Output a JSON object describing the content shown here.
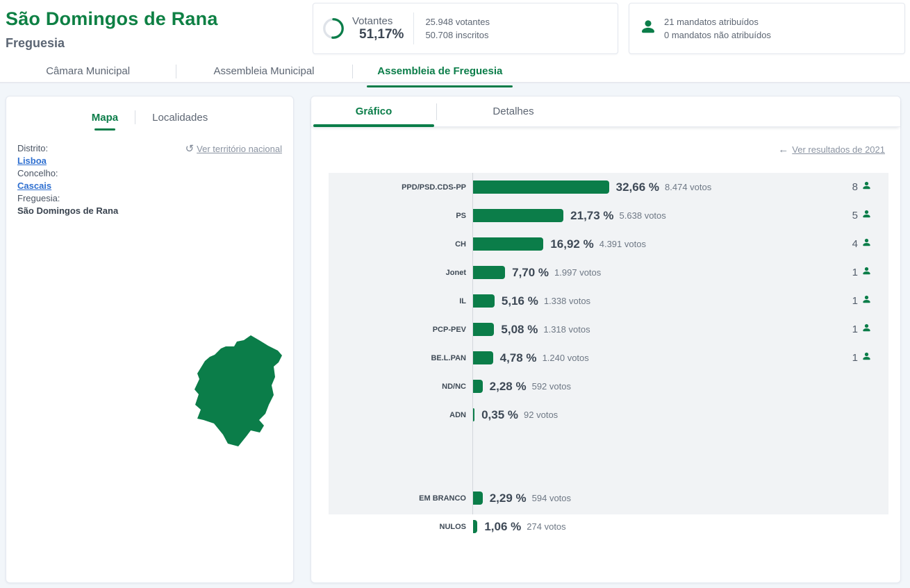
{
  "page": {
    "title": "São Domingos de Rana",
    "subtitle": "Freguesia"
  },
  "turnout": {
    "label": "Votantes",
    "percent": "51,17%",
    "percent_value": 51.17,
    "voters": "25.948 votantes",
    "registered": "50.708 inscritos"
  },
  "mandates": {
    "assigned": "21 mandatos atribuídos",
    "unassigned": "0 mandatos não atribuídos"
  },
  "main_tabs": [
    {
      "label": "Câmara Municipal",
      "active": false
    },
    {
      "label": "Assembleia Municipal",
      "active": false
    },
    {
      "label": "Assembleia de Freguesia",
      "active": true
    }
  ],
  "left_panel": {
    "tabs": [
      {
        "label": "Mapa",
        "active": true
      },
      {
        "label": "Localidades",
        "active": false
      }
    ],
    "reset_link": "Ver território nacional",
    "fields": [
      {
        "label": "Distrito:",
        "value": "Lisboa",
        "is_link": true
      },
      {
        "label": "Concelho:",
        "value": "Cascais",
        "is_link": true
      },
      {
        "label": "Freguesia:",
        "value": "São Domingos de Rana",
        "is_link": false
      }
    ]
  },
  "right_panel": {
    "tabs": [
      {
        "label": "Gráfico",
        "active": true
      },
      {
        "label": "Detalhes",
        "active": false
      }
    ],
    "back_link": "Ver resultados de 2021"
  },
  "chart_data": {
    "type": "bar",
    "orientation": "horizontal",
    "xlim": [
      0,
      100
    ],
    "value_unit": "percent of votes",
    "parties": [
      {
        "label": "PPD/PSD.CDS-PP",
        "percent": 32.66,
        "percent_label": "32,66 %",
        "votes": "8.474 votos",
        "mandates": 8
      },
      {
        "label": "PS",
        "percent": 21.73,
        "percent_label": "21,73 %",
        "votes": "5.638 votos",
        "mandates": 5
      },
      {
        "label": "CH",
        "percent": 16.92,
        "percent_label": "16,92 %",
        "votes": "4.391 votos",
        "mandates": 4
      },
      {
        "label": "Jonet",
        "percent": 7.7,
        "percent_label": "7,70 %",
        "votes": "1.997 votos",
        "mandates": 1
      },
      {
        "label": "IL",
        "percent": 5.16,
        "percent_label": "5,16 %",
        "votes": "1.338 votos",
        "mandates": 1
      },
      {
        "label": "PCP-PEV",
        "percent": 5.08,
        "percent_label": "5,08 %",
        "votes": "1.318 votos",
        "mandates": 1
      },
      {
        "label": "BE.L.PAN",
        "percent": 4.78,
        "percent_label": "4,78 %",
        "votes": "1.240 votos",
        "mandates": 1
      },
      {
        "label": "ND/NC",
        "percent": 2.28,
        "percent_label": "2,28 %",
        "votes": "592 votos",
        "mandates": null
      },
      {
        "label": "ADN",
        "percent": 0.35,
        "percent_label": "0,35 %",
        "votes": "92 votos",
        "mandates": null
      }
    ],
    "other": [
      {
        "label": "EM BRANCO",
        "percent": 2.29,
        "percent_label": "2,29 %",
        "votes": "594 votos",
        "mandates": null
      },
      {
        "label": "NULOS",
        "percent": 1.06,
        "percent_label": "1,06 %",
        "votes": "274 votos",
        "mandates": null
      }
    ]
  },
  "colors": {
    "accent_green": "#0b7d49",
    "title_green": "#0e8044",
    "link_blue": "#2e6fd0",
    "muted_text": "#8a93a1",
    "plot_background": "#f1f3f5"
  }
}
